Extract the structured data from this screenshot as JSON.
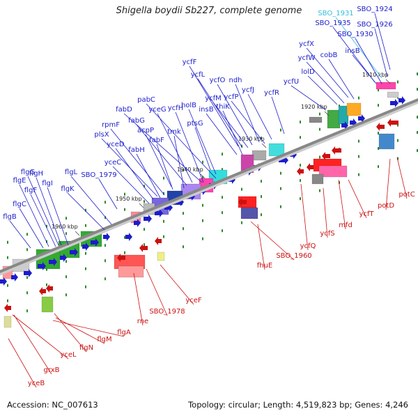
{
  "title": "Shigella boydii Sb227, complete genome",
  "footer": {
    "accession": "Accession: NC_007613",
    "summary": "Topology: circular; Length: 4,519,823 bp; Genes: 4,246"
  },
  "colors": {
    "forward": "#1c1ccc",
    "reverse": "#cc1111",
    "highlight": "#33bbdd",
    "backbone": "#888888",
    "tick": "#2a8a2a"
  },
  "ruler": [
    "1910 kbp",
    "1920 kbp",
    "1930 kbp",
    "1940 kbp",
    "1950 kbp",
    "1960 kbp"
  ],
  "forward_genes": [
    "SBO_1924",
    "SBO_1931",
    "SBO_1926",
    "SBO_1935",
    "SBO_1930",
    "ycfX",
    "insB",
    "cobB",
    "ycfW",
    "lolD",
    "ycfU",
    "ycfF",
    "ycfL",
    "ycfO",
    "ndh",
    "ycfR",
    "ycfJ",
    "ycfP",
    "ycfM",
    "pabC",
    "thiK",
    "insB",
    "fabD",
    "holB",
    "ycfH",
    "yceG",
    "ptsG",
    "fabG",
    "rpmF",
    "tmk",
    "acpP",
    "plsX",
    "fabF",
    "yceD",
    "fabH",
    "yceC",
    "SBO_1979",
    "flgL",
    "flgG",
    "flgK",
    "flgH",
    "flgE",
    "flgI",
    "flgF",
    "flgC",
    "flgB"
  ],
  "reverse_genes": [
    "potC",
    "potD",
    "ycfT",
    "mfd",
    "ycfS",
    "ycfQ",
    "SBO_1960",
    "fhuE",
    "yceF",
    "SBO_1978",
    "rne",
    "flgA",
    "flgM",
    "flgN",
    "yceL",
    "grxB",
    "yceB"
  ]
}
